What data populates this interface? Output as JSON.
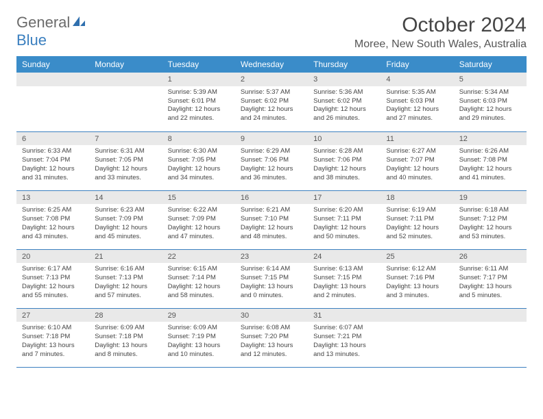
{
  "brand": {
    "general": "General",
    "blue": "Blue"
  },
  "title": "October 2024",
  "location": "Moree, New South Wales, Australia",
  "weekdays": [
    "Sunday",
    "Monday",
    "Tuesday",
    "Wednesday",
    "Thursday",
    "Friday",
    "Saturday"
  ],
  "colors": {
    "header_bg": "#3a8cc9",
    "header_text": "#ffffff",
    "daynum_bg": "#e9e9e9",
    "rule": "#3a7fbf",
    "logo_general": "#6b6b6b",
    "logo_blue": "#3a7fbf"
  },
  "weeks": [
    [
      null,
      null,
      {
        "n": "1",
        "sr": "Sunrise: 5:39 AM",
        "ss": "Sunset: 6:01 PM",
        "dl": "Daylight: 12 hours and 22 minutes."
      },
      {
        "n": "2",
        "sr": "Sunrise: 5:37 AM",
        "ss": "Sunset: 6:02 PM",
        "dl": "Daylight: 12 hours and 24 minutes."
      },
      {
        "n": "3",
        "sr": "Sunrise: 5:36 AM",
        "ss": "Sunset: 6:02 PM",
        "dl": "Daylight: 12 hours and 26 minutes."
      },
      {
        "n": "4",
        "sr": "Sunrise: 5:35 AM",
        "ss": "Sunset: 6:03 PM",
        "dl": "Daylight: 12 hours and 27 minutes."
      },
      {
        "n": "5",
        "sr": "Sunrise: 5:34 AM",
        "ss": "Sunset: 6:03 PM",
        "dl": "Daylight: 12 hours and 29 minutes."
      }
    ],
    [
      {
        "n": "6",
        "sr": "Sunrise: 6:33 AM",
        "ss": "Sunset: 7:04 PM",
        "dl": "Daylight: 12 hours and 31 minutes."
      },
      {
        "n": "7",
        "sr": "Sunrise: 6:31 AM",
        "ss": "Sunset: 7:05 PM",
        "dl": "Daylight: 12 hours and 33 minutes."
      },
      {
        "n": "8",
        "sr": "Sunrise: 6:30 AM",
        "ss": "Sunset: 7:05 PM",
        "dl": "Daylight: 12 hours and 34 minutes."
      },
      {
        "n": "9",
        "sr": "Sunrise: 6:29 AM",
        "ss": "Sunset: 7:06 PM",
        "dl": "Daylight: 12 hours and 36 minutes."
      },
      {
        "n": "10",
        "sr": "Sunrise: 6:28 AM",
        "ss": "Sunset: 7:06 PM",
        "dl": "Daylight: 12 hours and 38 minutes."
      },
      {
        "n": "11",
        "sr": "Sunrise: 6:27 AM",
        "ss": "Sunset: 7:07 PM",
        "dl": "Daylight: 12 hours and 40 minutes."
      },
      {
        "n": "12",
        "sr": "Sunrise: 6:26 AM",
        "ss": "Sunset: 7:08 PM",
        "dl": "Daylight: 12 hours and 41 minutes."
      }
    ],
    [
      {
        "n": "13",
        "sr": "Sunrise: 6:25 AM",
        "ss": "Sunset: 7:08 PM",
        "dl": "Daylight: 12 hours and 43 minutes."
      },
      {
        "n": "14",
        "sr": "Sunrise: 6:23 AM",
        "ss": "Sunset: 7:09 PM",
        "dl": "Daylight: 12 hours and 45 minutes."
      },
      {
        "n": "15",
        "sr": "Sunrise: 6:22 AM",
        "ss": "Sunset: 7:09 PM",
        "dl": "Daylight: 12 hours and 47 minutes."
      },
      {
        "n": "16",
        "sr": "Sunrise: 6:21 AM",
        "ss": "Sunset: 7:10 PM",
        "dl": "Daylight: 12 hours and 48 minutes."
      },
      {
        "n": "17",
        "sr": "Sunrise: 6:20 AM",
        "ss": "Sunset: 7:11 PM",
        "dl": "Daylight: 12 hours and 50 minutes."
      },
      {
        "n": "18",
        "sr": "Sunrise: 6:19 AM",
        "ss": "Sunset: 7:11 PM",
        "dl": "Daylight: 12 hours and 52 minutes."
      },
      {
        "n": "19",
        "sr": "Sunrise: 6:18 AM",
        "ss": "Sunset: 7:12 PM",
        "dl": "Daylight: 12 hours and 53 minutes."
      }
    ],
    [
      {
        "n": "20",
        "sr": "Sunrise: 6:17 AM",
        "ss": "Sunset: 7:13 PM",
        "dl": "Daylight: 12 hours and 55 minutes."
      },
      {
        "n": "21",
        "sr": "Sunrise: 6:16 AM",
        "ss": "Sunset: 7:13 PM",
        "dl": "Daylight: 12 hours and 57 minutes."
      },
      {
        "n": "22",
        "sr": "Sunrise: 6:15 AM",
        "ss": "Sunset: 7:14 PM",
        "dl": "Daylight: 12 hours and 58 minutes."
      },
      {
        "n": "23",
        "sr": "Sunrise: 6:14 AM",
        "ss": "Sunset: 7:15 PM",
        "dl": "Daylight: 13 hours and 0 minutes."
      },
      {
        "n": "24",
        "sr": "Sunrise: 6:13 AM",
        "ss": "Sunset: 7:15 PM",
        "dl": "Daylight: 13 hours and 2 minutes."
      },
      {
        "n": "25",
        "sr": "Sunrise: 6:12 AM",
        "ss": "Sunset: 7:16 PM",
        "dl": "Daylight: 13 hours and 3 minutes."
      },
      {
        "n": "26",
        "sr": "Sunrise: 6:11 AM",
        "ss": "Sunset: 7:17 PM",
        "dl": "Daylight: 13 hours and 5 minutes."
      }
    ],
    [
      {
        "n": "27",
        "sr": "Sunrise: 6:10 AM",
        "ss": "Sunset: 7:18 PM",
        "dl": "Daylight: 13 hours and 7 minutes."
      },
      {
        "n": "28",
        "sr": "Sunrise: 6:09 AM",
        "ss": "Sunset: 7:18 PM",
        "dl": "Daylight: 13 hours and 8 minutes."
      },
      {
        "n": "29",
        "sr": "Sunrise: 6:09 AM",
        "ss": "Sunset: 7:19 PM",
        "dl": "Daylight: 13 hours and 10 minutes."
      },
      {
        "n": "30",
        "sr": "Sunrise: 6:08 AM",
        "ss": "Sunset: 7:20 PM",
        "dl": "Daylight: 13 hours and 12 minutes."
      },
      {
        "n": "31",
        "sr": "Sunrise: 6:07 AM",
        "ss": "Sunset: 7:21 PM",
        "dl": "Daylight: 13 hours and 13 minutes."
      },
      null,
      null
    ]
  ]
}
